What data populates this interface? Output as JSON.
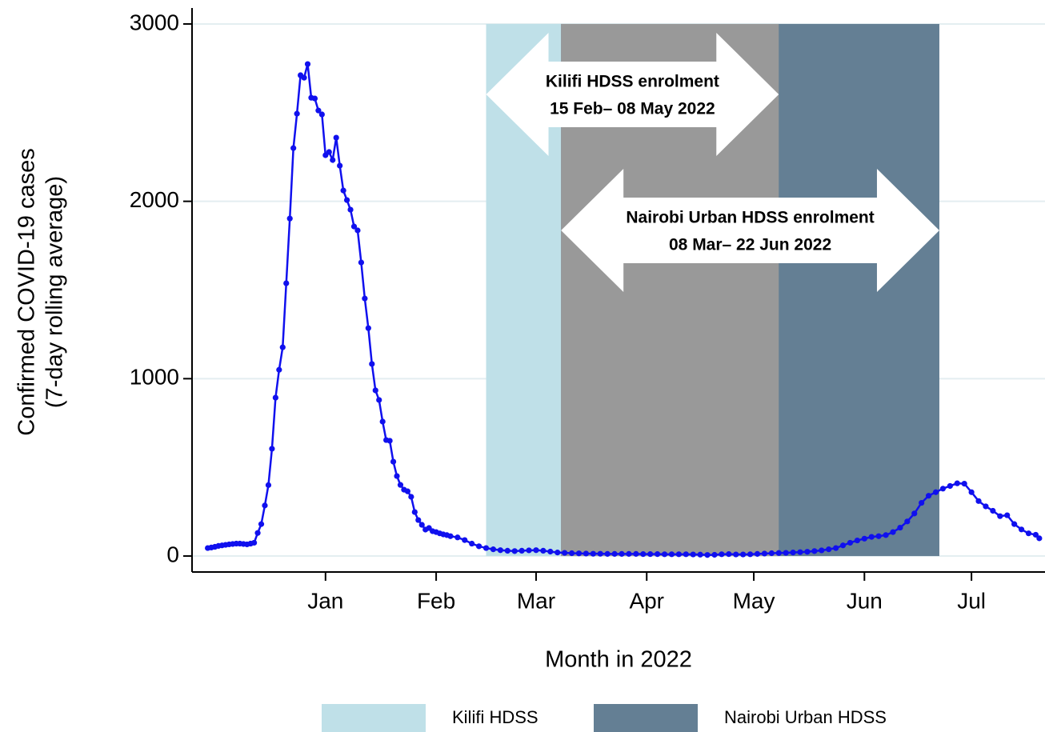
{
  "chart_data": {
    "type": "line",
    "xlabel": "Month in 2022",
    "ylabel": [
      "Confirmed COVID-19 cases",
      "(7-day rolling average)"
    ],
    "xlim": [
      -37.4,
      201.6
    ],
    "xticks": [
      {
        "value": 0,
        "label": "Jan"
      },
      {
        "value": 31,
        "label": "Feb"
      },
      {
        "value": 59,
        "label": "Mar"
      },
      {
        "value": 90,
        "label": "Apr"
      },
      {
        "value": 120,
        "label": "May"
      },
      {
        "value": 151,
        "label": "Jun"
      },
      {
        "value": 181,
        "label": "Jul"
      }
    ],
    "ylim": [
      -90,
      3090
    ],
    "yticks": [
      0,
      1000,
      2000,
      3000
    ],
    "grid": true,
    "bands": [
      {
        "name": "Kilifi HDSS",
        "color": "#bfe0e8",
        "x": [
          45,
          127
        ],
        "label": [
          "Kilifi HDSS enrolment",
          "15 Feb– 08 May 2022"
        ]
      },
      {
        "name": "Nairobi Urban HDSS",
        "color": "#647f94",
        "x": [
          66,
          172
        ],
        "label": [
          "Nairobi Urban HDSS enrolment",
          "08 Mar– 22 Jun 2022"
        ]
      }
    ],
    "overlap_color": "#999999",
    "series": [
      {
        "color": "#1010ee",
        "x": [
          -33,
          -32,
          -31,
          -30,
          -29,
          -28,
          -27,
          -26,
          -25,
          -24,
          -23,
          -22,
          -21,
          -20,
          -19,
          -18,
          -17,
          -16,
          -15,
          -14,
          -13,
          -12,
          -11,
          -10,
          -9,
          -8,
          -7,
          -6,
          -5,
          -4,
          -3,
          -2,
          -1,
          0,
          1,
          2,
          3,
          4,
          5,
          6,
          7,
          8,
          9,
          10,
          11,
          12,
          13,
          14,
          15,
          16,
          17,
          18,
          19,
          20,
          21,
          22,
          23,
          24,
          25,
          26,
          27,
          28,
          29,
          30,
          31,
          32,
          33,
          34,
          35,
          37,
          39,
          41,
          43,
          45,
          47,
          49,
          51,
          53,
          55,
          57,
          59,
          61,
          63,
          65,
          67,
          69,
          71,
          73,
          75,
          77,
          79,
          81,
          83,
          85,
          87,
          89,
          91,
          93,
          95,
          97,
          99,
          101,
          103,
          105,
          107,
          109,
          111,
          113,
          115,
          117,
          119,
          121,
          123,
          125,
          127,
          129,
          131,
          133,
          135,
          137,
          139,
          141,
          143,
          145,
          147,
          149,
          151,
          153,
          155,
          157,
          159,
          161,
          163,
          165,
          167,
          169,
          171,
          173,
          175,
          177,
          179,
          181,
          183,
          185,
          187,
          189,
          191,
          193,
          195,
          197,
          199,
          200
        ],
        "values": [
          45,
          48,
          52,
          57,
          60,
          63,
          66,
          68,
          70,
          70,
          68,
          66,
          70,
          75,
          130,
          180,
          285,
          400,
          605,
          893,
          1050,
          1177,
          1538,
          1903,
          2300,
          2494,
          2711,
          2697,
          2774,
          2584,
          2580,
          2512,
          2490,
          2260,
          2278,
          2233,
          2359,
          2201,
          2061,
          2007,
          1953,
          1858,
          1836,
          1655,
          1452,
          1285,
          1083,
          934,
          880,
          758,
          654,
          650,
          532,
          451,
          401,
          374,
          365,
          334,
          248,
          203,
          176,
          149,
          158,
          140,
          135,
          128,
          122,
          118,
          112,
          105,
          90,
          70,
          55,
          45,
          38,
          33,
          30,
          28,
          30,
          32,
          33,
          30,
          25,
          20,
          18,
          16,
          15,
          14,
          13,
          13,
          12,
          12,
          12,
          12,
          12,
          11,
          11,
          11,
          10,
          10,
          10,
          10,
          9,
          8,
          6,
          7,
          10,
          11,
          9,
          9,
          10,
          12,
          14,
          16,
          17,
          18,
          20,
          22,
          24,
          28,
          32,
          38,
          45,
          60,
          75,
          88,
          98,
          108,
          112,
          118,
          135,
          160,
          195,
          240,
          300,
          340,
          360,
          380,
          395,
          410,
          408,
          360,
          310,
          280,
          255,
          225,
          230,
          180,
          150,
          128,
          120,
          100
        ]
      }
    ]
  }
}
